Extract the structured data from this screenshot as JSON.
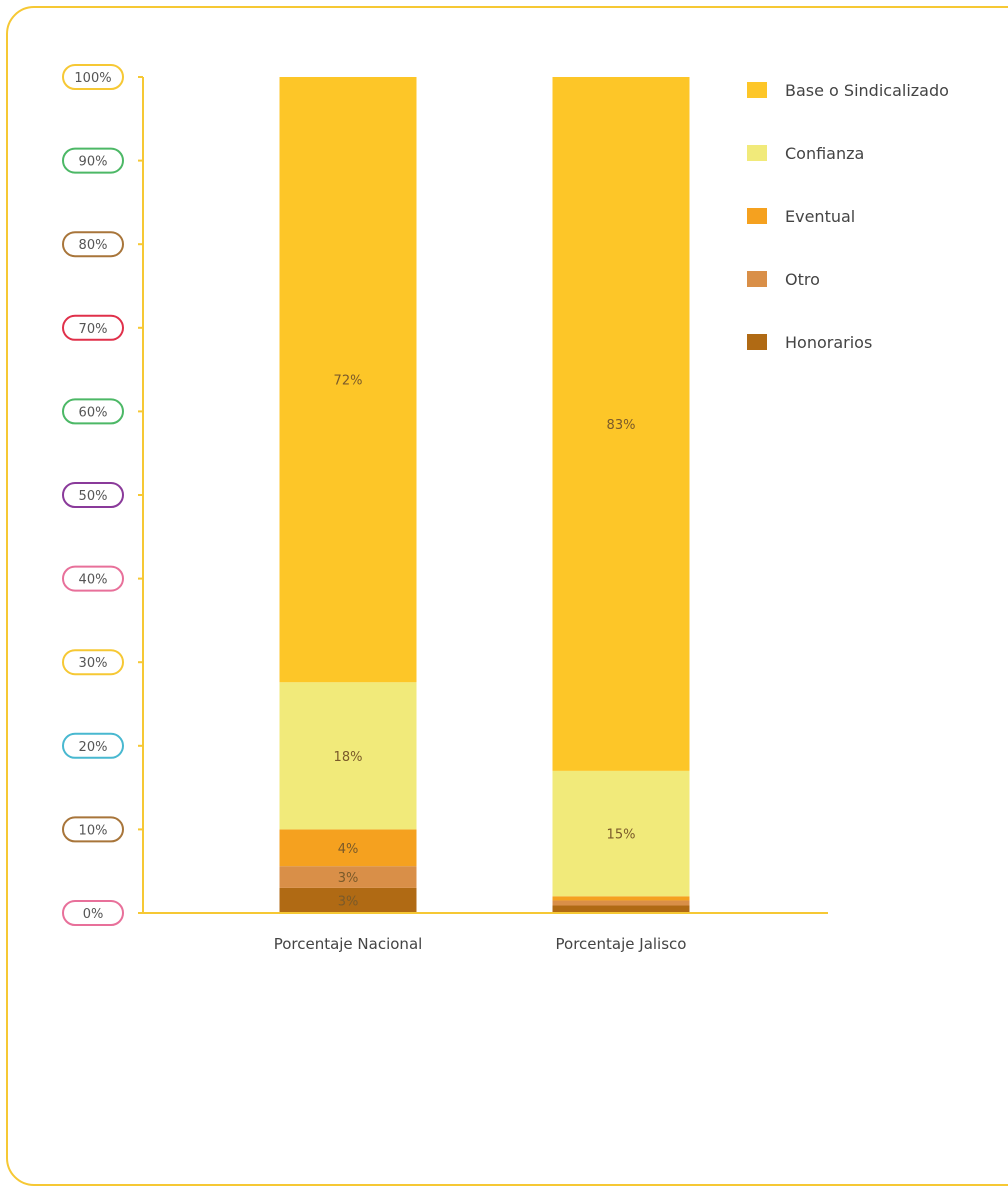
{
  "chart_data": {
    "type": "bar",
    "stacked": true,
    "categories": [
      "Porcentaje Nacional",
      "Porcentaje  Jalisco"
    ],
    "ylim": [
      0,
      100
    ],
    "yticks": [
      "0%",
      "10%",
      "20%",
      "30%",
      "40%",
      "50%",
      "60%",
      "70%",
      "80%",
      "90%",
      "100%"
    ],
    "tick_colors": [
      "#e8709a",
      "#a8753a",
      "#48b8d0",
      "#f6c834",
      "#e8709a",
      "#8a3a9a",
      "#4cb866",
      "#e0304a",
      "#a8753a",
      "#4cb866",
      "#f6c834"
    ],
    "legend_position": "top-right",
    "series": [
      {
        "name": "Honorarios",
        "color": "#b06a14",
        "values": [
          3,
          0.9
        ],
        "labels": [
          "3%",
          ""
        ]
      },
      {
        "name": "Otro",
        "color": "#d98f48",
        "values": [
          2.6,
          0.6
        ],
        "labels": [
          "3%",
          ""
        ]
      },
      {
        "name": "Eventual",
        "color": "#f5a11f",
        "values": [
          4.4,
          0.5
        ],
        "labels": [
          "4%",
          ""
        ]
      },
      {
        "name": "Confianza",
        "color": "#f1ea7a",
        "values": [
          17.6,
          15
        ],
        "labels": [
          "18%",
          "15%"
        ]
      },
      {
        "name": "Base o Sindicalizado",
        "color": "#fdc628",
        "values": [
          72.4,
          83
        ],
        "labels": [
          "72%",
          "83%"
        ]
      }
    ],
    "legend_order": [
      "Base o Sindicalizado",
      "Confianza",
      "Eventual",
      "Otro",
      "Honorarios"
    ]
  }
}
